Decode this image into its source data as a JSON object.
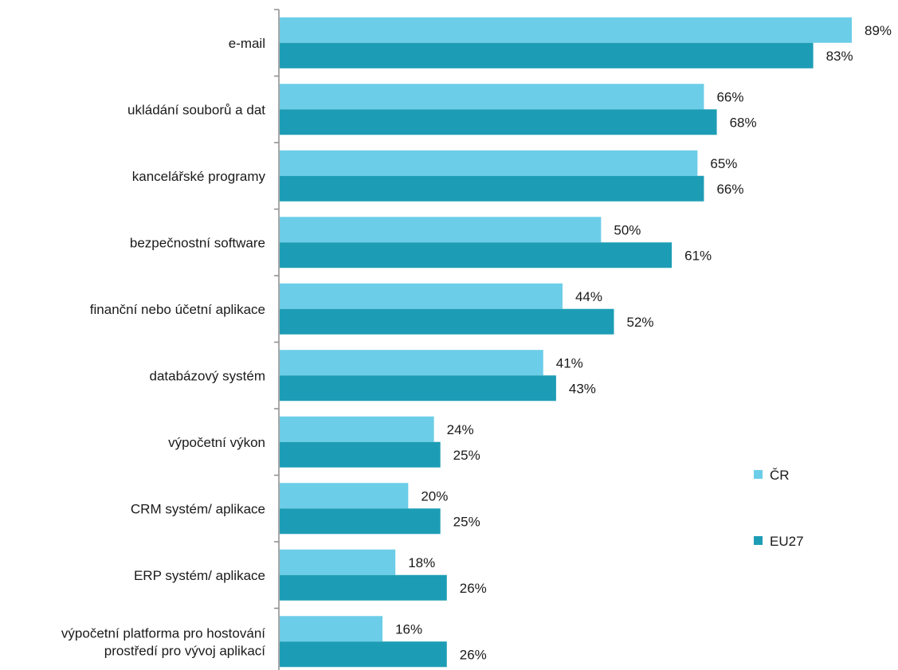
{
  "chart_data": {
    "type": "bar",
    "orientation": "horizontal",
    "categories": [
      [
        "e-mail"
      ],
      [
        "ukládání souborů a dat"
      ],
      [
        "kancelářské programy"
      ],
      [
        "bezpečnostní software"
      ],
      [
        "finanční nebo účetní aplikace"
      ],
      [
        "databázový systém"
      ],
      [
        "výpočetní výkon"
      ],
      [
        "CRM systém/ aplikace"
      ],
      [
        "ERP systém/ aplikace"
      ],
      [
        "výpočetní platforma pro hostování",
        "prostředí pro vývoj aplikací"
      ]
    ],
    "series": [
      {
        "name": "ČR",
        "color": "#6ccde8",
        "values": [
          89,
          66,
          65,
          50,
          44,
          41,
          24,
          20,
          18,
          16
        ]
      },
      {
        "name": "EU27",
        "color": "#1d9db5",
        "values": [
          83,
          68,
          66,
          61,
          52,
          43,
          25,
          25,
          26,
          26
        ]
      }
    ],
    "value_suffix": "%",
    "xlim": [
      0,
      90
    ],
    "legend_position": "right",
    "grid": false
  }
}
